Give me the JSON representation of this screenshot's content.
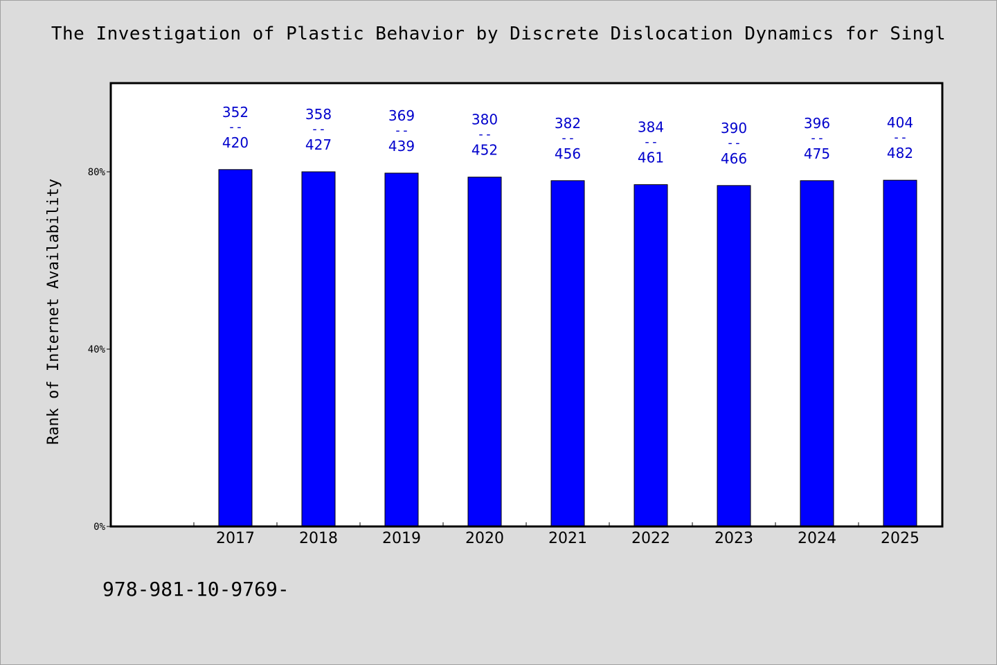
{
  "footer": {
    "isbn": "978-981-10-9769-"
  },
  "colors": {
    "bar": "#0000ff",
    "label": "#0000cc",
    "background": "#dcdcdc",
    "plot": "#ffffff"
  },
  "chart_data": {
    "type": "bar",
    "title": "The Investigation of Plastic Behavior by Discrete Dislocation Dynamics for Singl",
    "ylabel": "Rank of Internet Availability",
    "xlabel": "",
    "categories": [
      "2017",
      "2018",
      "2019",
      "2020",
      "2021",
      "2022",
      "2023",
      "2024",
      "2025"
    ],
    "values": [
      80.5,
      80.0,
      79.7,
      78.8,
      78.0,
      77.1,
      76.9,
      78.0,
      78.1
    ],
    "data_labels": [
      {
        "top": "352",
        "sep": "--",
        "bottom": "420"
      },
      {
        "top": "358",
        "sep": "--",
        "bottom": "427"
      },
      {
        "top": "369",
        "sep": "--",
        "bottom": "439"
      },
      {
        "top": "380",
        "sep": "--",
        "bottom": "452"
      },
      {
        "top": "382",
        "sep": "--",
        "bottom": "456"
      },
      {
        "top": "384",
        "sep": "--",
        "bottom": "461"
      },
      {
        "top": "390",
        "sep": "--",
        "bottom": "466"
      },
      {
        "top": "396",
        "sep": "--",
        "bottom": "475"
      },
      {
        "top": "404",
        "sep": "--",
        "bottom": "482"
      }
    ],
    "yticks": [
      "0%",
      "40%",
      "80%"
    ],
    "ytick_values": [
      0,
      40,
      80
    ],
    "ylim": [
      0,
      100
    ],
    "grid": false,
    "legend": "none"
  }
}
